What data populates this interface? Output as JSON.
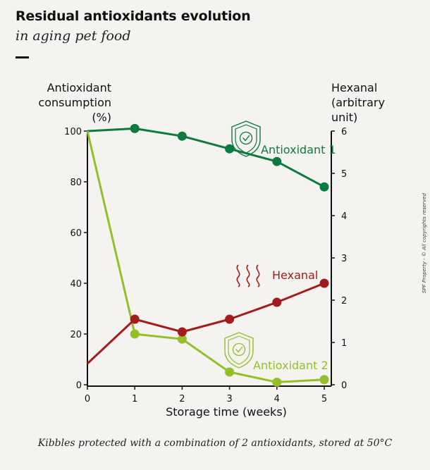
{
  "header": {
    "title": "Residual antioxidants evolution",
    "subtitle": "in aging pet food"
  },
  "footer": {
    "caption": "Kibbles protected with a combination of 2 antioxidants, stored at 50°C",
    "copyright": "SPF Property - © All copyrights reserved"
  },
  "chart_data": {
    "type": "line",
    "xlabel": "Storage time (weeks)",
    "ylabel_left": "Antioxidant\nconsumption\n(%)",
    "ylabel_right": "Hexanal\n(arbitrary\nunit)",
    "x_ticks": [
      0,
      1,
      2,
      3,
      4,
      5
    ],
    "y_left_ticks": [
      0,
      20,
      40,
      60,
      80,
      100
    ],
    "y_right_ticks": [
      0,
      1,
      2,
      3,
      4,
      5,
      6
    ],
    "xlim": [
      0,
      5
    ],
    "ylim_left": [
      0,
      100
    ],
    "ylim_right": [
      0,
      6
    ],
    "grid": false,
    "series": [
      {
        "name": "Antioxidant 1",
        "axis": "left",
        "color": "#0e7a3e",
        "icon": "shield-check-icon",
        "x": [
          0,
          1,
          2,
          3,
          4,
          5
        ],
        "values": [
          100,
          101,
          98,
          93,
          88,
          78
        ],
        "markers": [
          false,
          true,
          true,
          true,
          true,
          true
        ]
      },
      {
        "name": "Antioxidant 2",
        "axis": "left",
        "color": "#93bf2a",
        "icon": "shield-check-icon",
        "x": [
          0,
          1,
          2,
          3,
          4,
          5
        ],
        "values": [
          100,
          20,
          18,
          5,
          1,
          2
        ],
        "markers": [
          false,
          true,
          true,
          true,
          true,
          true
        ]
      },
      {
        "name": "Hexanal",
        "axis": "right",
        "color": "#a31c1c",
        "icon": "smell-waves-icon",
        "x": [
          0,
          1,
          2,
          3,
          4,
          5
        ],
        "values": [
          0.5,
          1.55,
          1.25,
          1.55,
          1.95,
          2.4
        ],
        "markers": [
          false,
          true,
          true,
          true,
          true,
          true
        ]
      }
    ]
  }
}
